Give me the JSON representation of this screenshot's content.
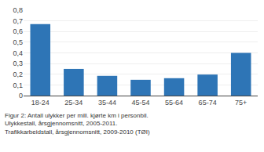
{
  "chart_data": {
    "type": "bar",
    "categories": [
      "18-24",
      "25-34",
      "35-44",
      "45-54",
      "55-64",
      "65-74",
      "75+"
    ],
    "values": [
      0.67,
      0.25,
      0.185,
      0.148,
      0.163,
      0.197,
      0.4
    ],
    "color": "#2E75B6",
    "ylim": [
      0,
      0.8
    ],
    "yticks": [
      0,
      {
        "value": 0.1,
        "label": "0,1"
      },
      {
        "value": 0.2,
        "label": "0,2"
      },
      {
        "value": 0.3,
        "label": "0,3"
      },
      {
        "value": 0.4,
        "label": "0,4"
      },
      {
        "value": 0.5,
        "label": "0,5"
      },
      {
        "value": 0.6,
        "label": "0,6"
      },
      {
        "value": 0.7,
        "label": "0,7"
      },
      {
        "value": 0.8,
        "label": "0,8"
      }
    ],
    "grid": true,
    "annotations": [
      "Figur 2: Antall ulykker per mill. kjørte km i personbil. Ulykkestall, årsgjennomsnitt, 2005-2011.\nTrafikkarbeidstall, årsgjennomsnitt, 2009-2010 (TØI)"
    ]
  }
}
